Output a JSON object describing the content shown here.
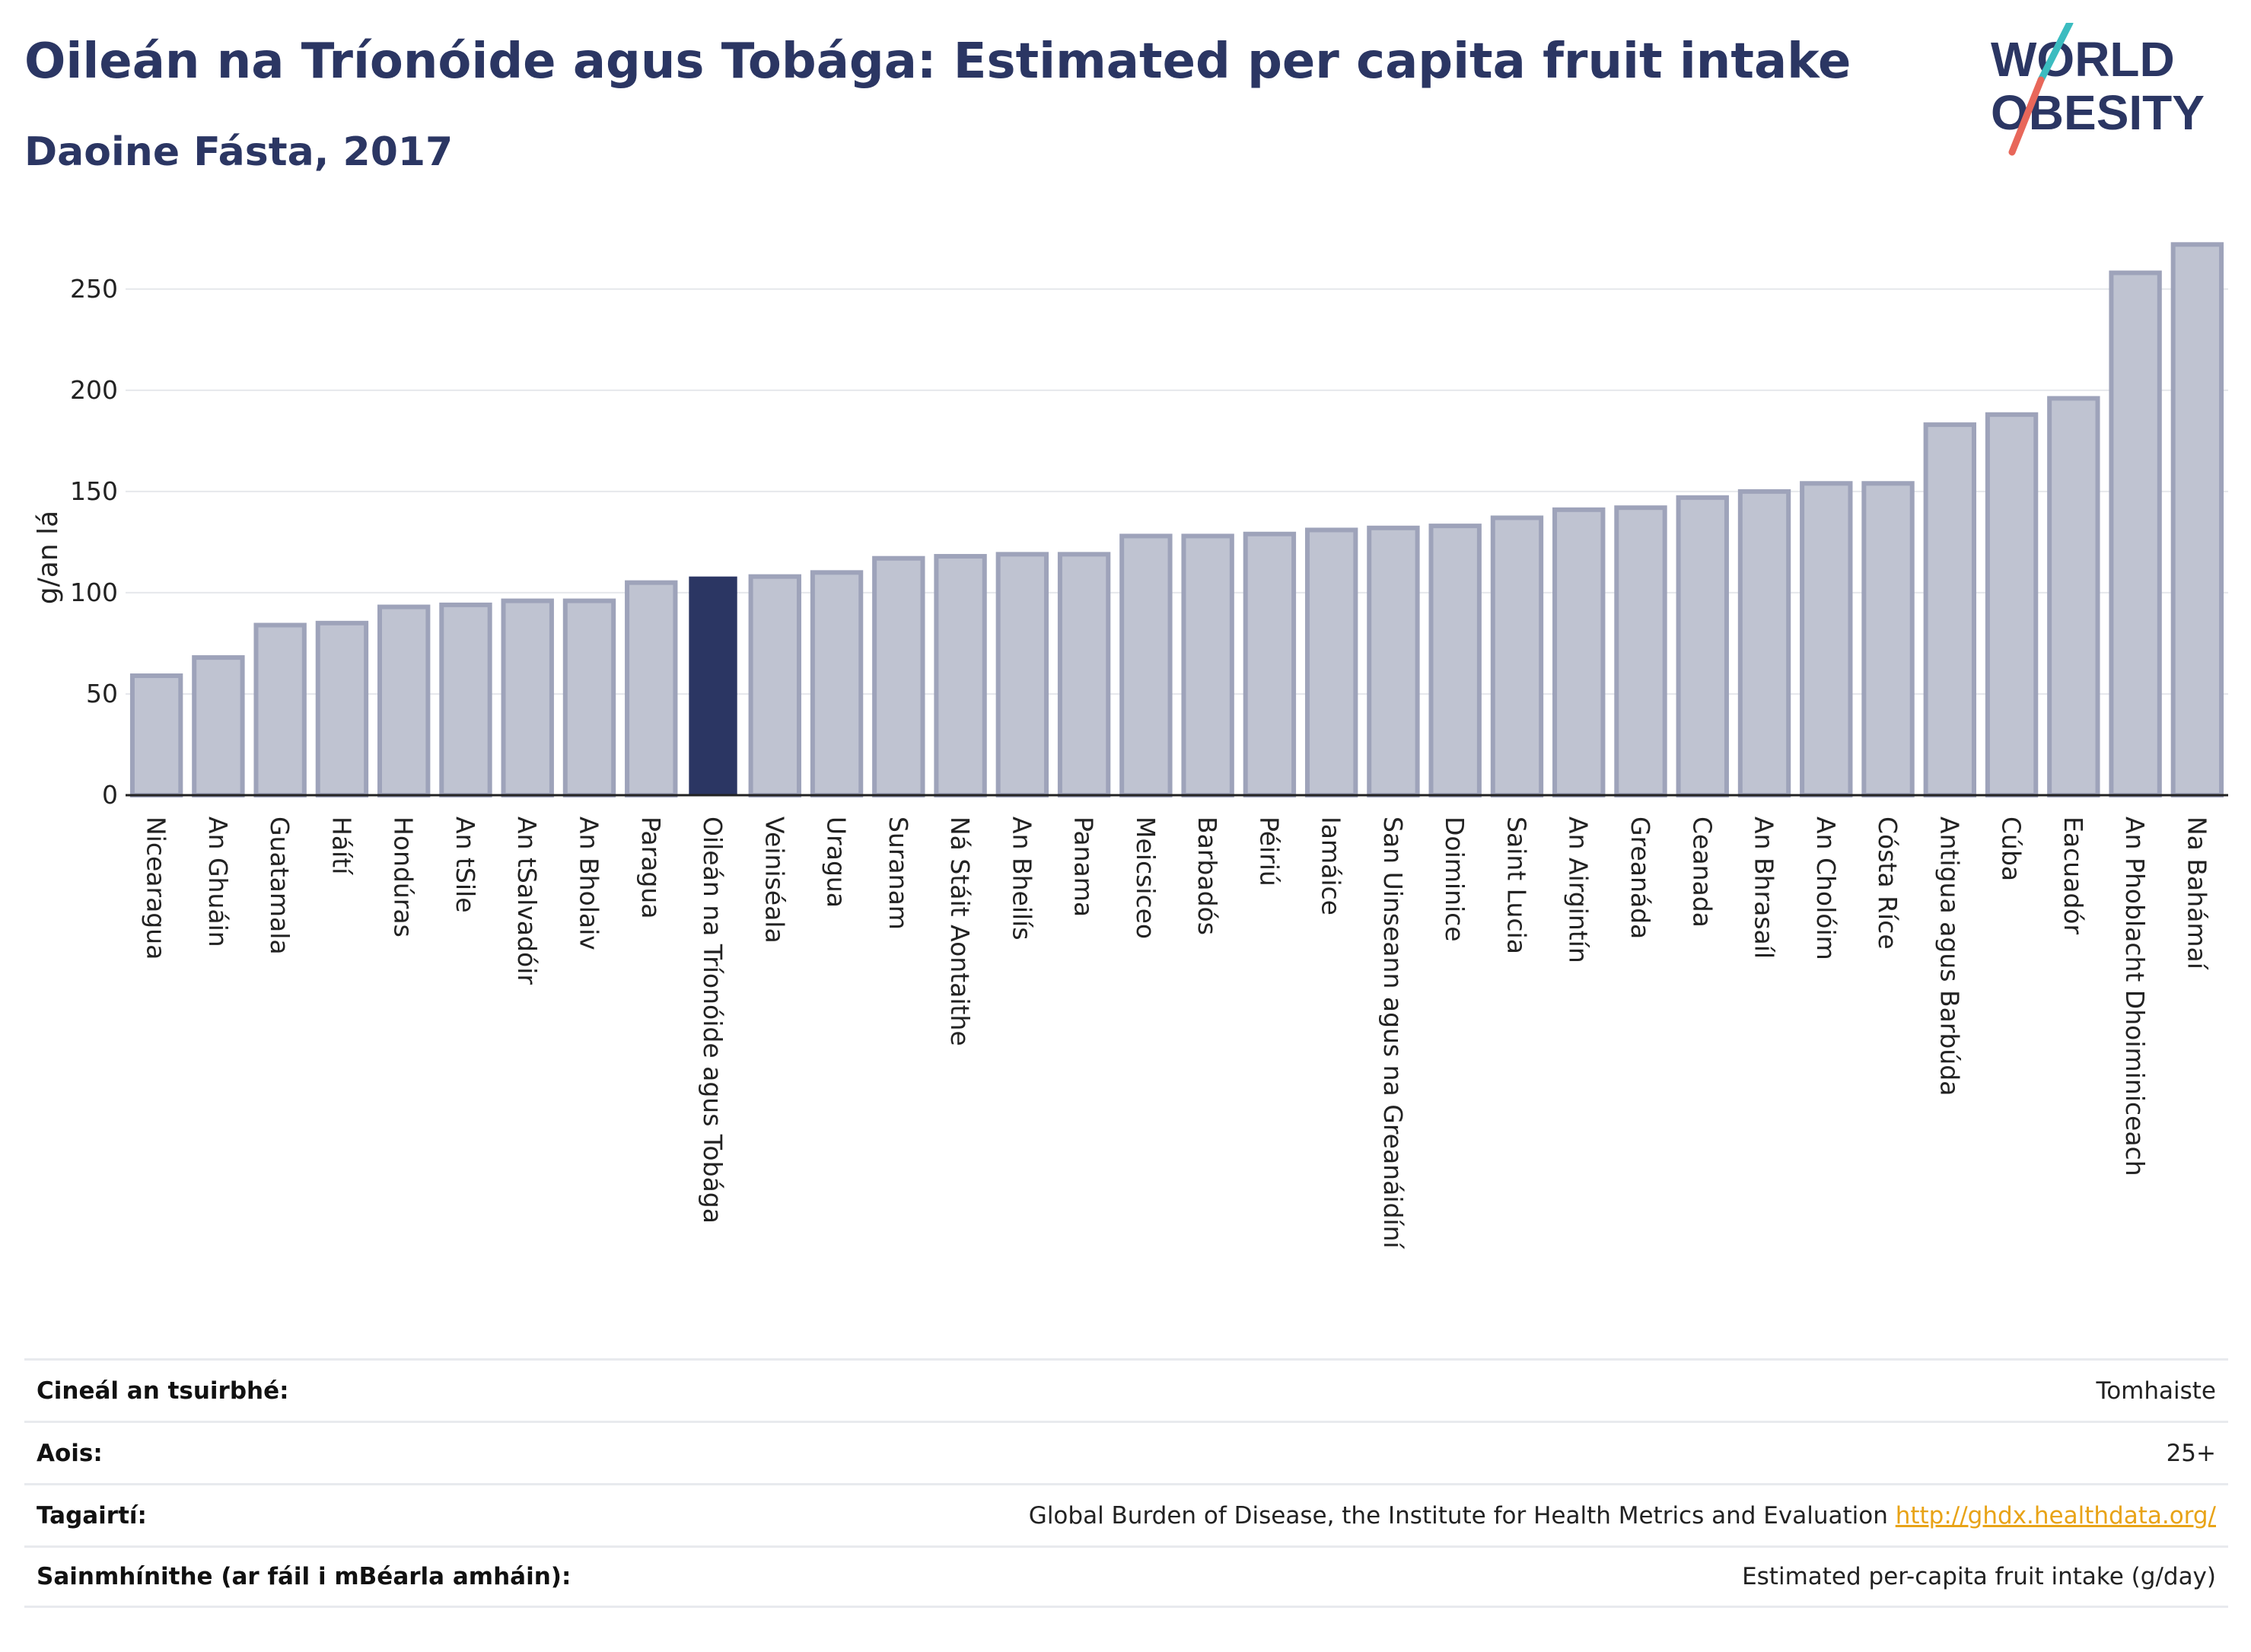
{
  "header": {
    "title": "Oileán na Tríonóide agus Tobága: Estimated per capita fruit intake",
    "subtitle": "Daoine Fásta, 2017"
  },
  "logo": {
    "line1": "WORLD",
    "line2": "OBESITY",
    "colors": {
      "text": "#2b3663",
      "slash_teal": "#3bbcc0",
      "slash_coral": "#e8675a"
    }
  },
  "colors": {
    "bar": "#bfc3d1",
    "bar_border": "#9ea3ba",
    "highlight": "#2b3663",
    "grid": "#e6e8ec",
    "axis": "#222222"
  },
  "chart_data": {
    "type": "bar",
    "ylabel": "g/an lá",
    "ylim": [
      0,
      280
    ],
    "yticks": [
      0,
      50,
      100,
      150,
      200,
      250
    ],
    "grid": true,
    "highlight": "Oileán na Tríonóide agus Tobága",
    "categories": [
      "Nicearagua",
      "An Ghuáin",
      "Guatamala",
      "Háítí",
      "Hondúras",
      "An tSile",
      "An tSalvadóir",
      "An Bholaiv",
      "Paragua",
      "Oileán na Tríonóide agus Tobága",
      "Veiniséala",
      "Uragua",
      "Suranam",
      "Ná Stáit Aontaithe",
      "An Bheilís",
      "Panama",
      "Meicsiceo",
      "Barbadós",
      "Péiriú",
      "Iamáice",
      "San Uinseann agus na Greanáidíní",
      "Doiminice",
      "Saint Lucia",
      "An Airgintín",
      "Greanáda",
      "Ceanada",
      "An Bhrasaíl",
      "An Cholóim",
      "Cósta Ríce",
      "Antigua agus Barbúda",
      "Cúba",
      "Eacuadór",
      "An Phoblacht Dhoiminiceach",
      "Na Bahámaí"
    ],
    "values": [
      59,
      68,
      84,
      85,
      93,
      94,
      96,
      96,
      105,
      108,
      108,
      110,
      117,
      118,
      119,
      119,
      128,
      128,
      129,
      131,
      132,
      133,
      137,
      141,
      142,
      147,
      150,
      154,
      154,
      183,
      188,
      196,
      258,
      272
    ]
  },
  "info_table": [
    {
      "label": "Cineál an tsuirbhé:",
      "value": "Tomhaiste"
    },
    {
      "label": "Aois:",
      "value": "25+"
    },
    {
      "label": "Tagairtí:",
      "value": "Global Burden of Disease, the Institute for Health Metrics and Evaluation",
      "link": "http://ghdx.healthdata.org/"
    },
    {
      "label": "Sainmhínithe (ar fáil i mBéarla amháin):",
      "value": "Estimated per-capita fruit intake (g/day)"
    }
  ]
}
